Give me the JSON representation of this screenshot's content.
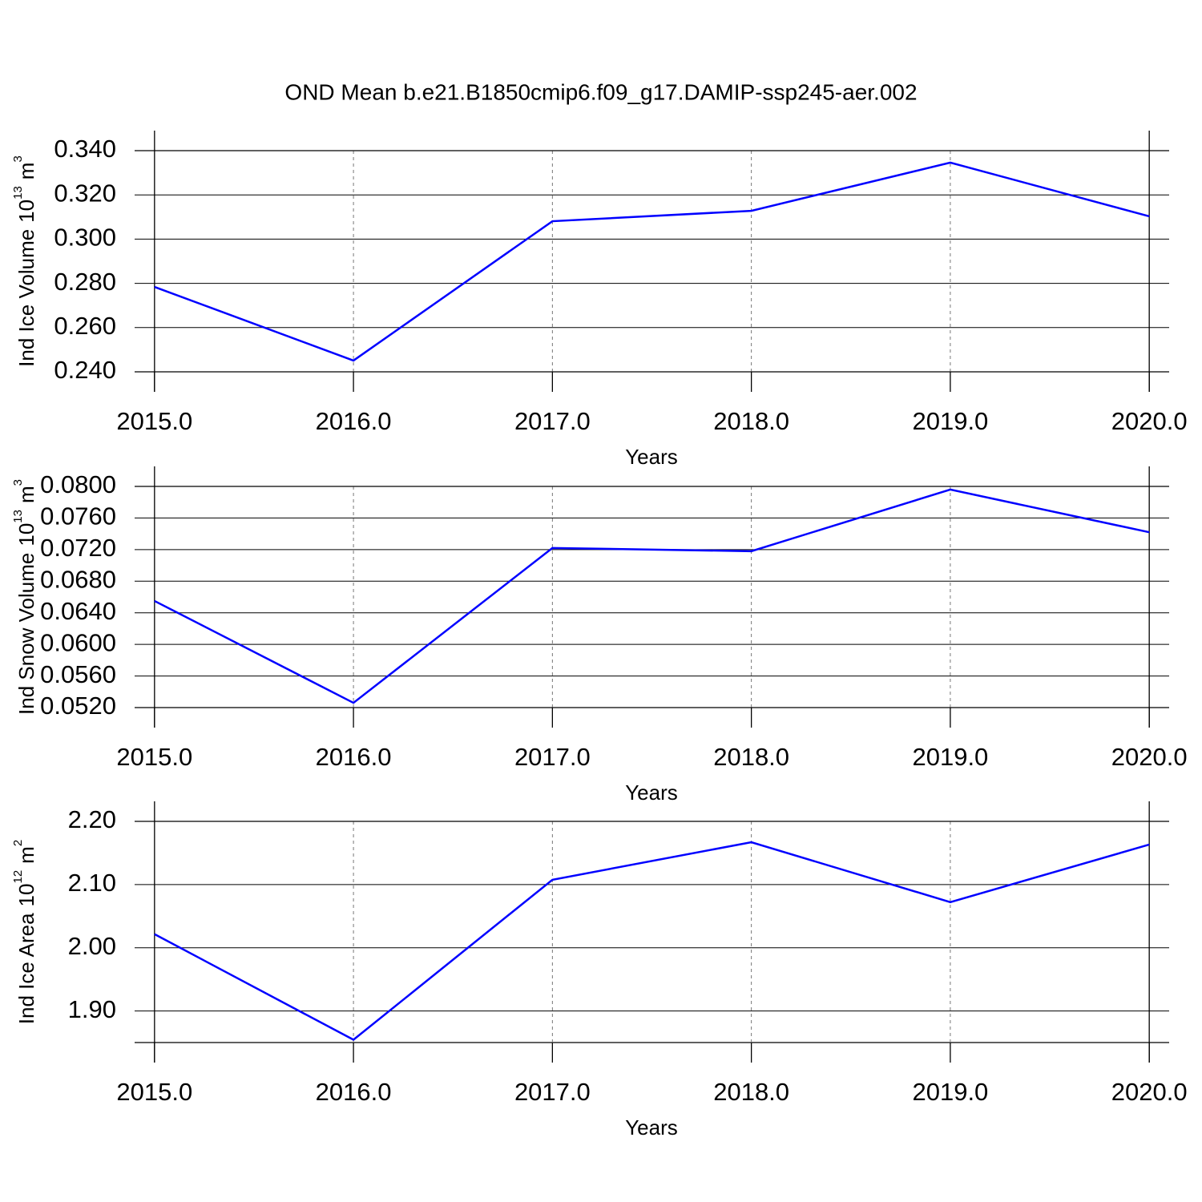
{
  "title": "OND Mean b.e21.B1850cmip6.f09_g17.DAMIP-ssp245-aer.002",
  "chart_data": [
    {
      "type": "line",
      "xlabel": "Years",
      "ylabel": {
        "text": "Ind Ice Volume",
        "power": "10",
        "exponent": "13",
        "unit": "m",
        "unit_exponent": "3"
      },
      "x": [
        2015,
        2016,
        2017,
        2018,
        2019,
        2020
      ],
      "series": [
        {
          "color": "#0000ff",
          "values": [
            0.2784,
            0.2451,
            0.3081,
            0.3128,
            0.3346,
            0.3103
          ]
        }
      ],
      "xlim": [
        2014.9,
        2020.1
      ],
      "xticks": [
        {
          "value": 2015,
          "label": "2015.0"
        },
        {
          "value": 2016,
          "label": "2016.0"
        },
        {
          "value": 2017,
          "label": "2017.0"
        },
        {
          "value": 2018,
          "label": "2018.0"
        },
        {
          "value": 2019,
          "label": "2019.0"
        },
        {
          "value": 2020,
          "label": "2020.0"
        }
      ],
      "ylim": [
        0.24,
        0.34
      ],
      "yticks": [
        {
          "value": 0.24,
          "label": "0.240"
        },
        {
          "value": 0.26,
          "label": "0.260"
        },
        {
          "value": 0.28,
          "label": "0.280"
        },
        {
          "value": 0.3,
          "label": "0.300"
        },
        {
          "value": 0.32,
          "label": "0.320"
        },
        {
          "value": 0.34,
          "label": "0.340"
        }
      ],
      "xgrid": true
    },
    {
      "type": "line",
      "xlabel": "Years",
      "ylabel": {
        "text": "Ind Snow Volume",
        "power": "10",
        "exponent": "13",
        "unit": "m",
        "unit_exponent": "3"
      },
      "x": [
        2015,
        2016,
        2017,
        2018,
        2019,
        2020
      ],
      "series": [
        {
          "color": "#0000ff",
          "values": [
            0.0655,
            0.0526,
            0.0722,
            0.0718,
            0.0796,
            0.0742
          ]
        }
      ],
      "xlim": [
        2014.9,
        2020.1
      ],
      "xticks": [
        {
          "value": 2015,
          "label": "2015.0"
        },
        {
          "value": 2016,
          "label": "2016.0"
        },
        {
          "value": 2017,
          "label": "2017.0"
        },
        {
          "value": 2018,
          "label": "2018.0"
        },
        {
          "value": 2019,
          "label": "2019.0"
        },
        {
          "value": 2020,
          "label": "2020.0"
        }
      ],
      "ylim": [
        0.052,
        0.08
      ],
      "yticks": [
        {
          "value": 0.052,
          "label": "0.0520"
        },
        {
          "value": 0.056,
          "label": "0.0560"
        },
        {
          "value": 0.06,
          "label": "0.0600"
        },
        {
          "value": 0.064,
          "label": "0.0640"
        },
        {
          "value": 0.068,
          "label": "0.0680"
        },
        {
          "value": 0.072,
          "label": "0.0720"
        },
        {
          "value": 0.076,
          "label": "0.0760"
        },
        {
          "value": 0.08,
          "label": "0.0800"
        }
      ],
      "xgrid": true
    },
    {
      "type": "line",
      "xlabel": "Years",
      "ylabel": {
        "text": "Ind Ice Area",
        "power": "10",
        "exponent": "12",
        "unit": "m",
        "unit_exponent": "2"
      },
      "x": [
        2015,
        2016,
        2017,
        2018,
        2019,
        2020
      ],
      "series": [
        {
          "color": "#0000ff",
          "values": [
            2.0215,
            1.8544,
            2.1076,
            2.167,
            2.0722,
            2.1633
          ]
        }
      ],
      "xlim": [
        2014.9,
        2020.1
      ],
      "xticks": [
        {
          "value": 2015,
          "label": "2015.0"
        },
        {
          "value": 2016,
          "label": "2016.0"
        },
        {
          "value": 2017,
          "label": "2017.0"
        },
        {
          "value": 2018,
          "label": "2018.0"
        },
        {
          "value": 2019,
          "label": "2019.0"
        },
        {
          "value": 2020,
          "label": "2020.0"
        }
      ],
      "ylim": [
        1.85,
        2.2
      ],
      "yticks": [
        {
          "value": 1.9,
          "label": "1.90"
        },
        {
          "value": 2.0,
          "label": "2.00"
        },
        {
          "value": 2.1,
          "label": "2.10"
        },
        {
          "value": 2.2,
          "label": "2.20"
        }
      ],
      "xgrid": true
    }
  ]
}
